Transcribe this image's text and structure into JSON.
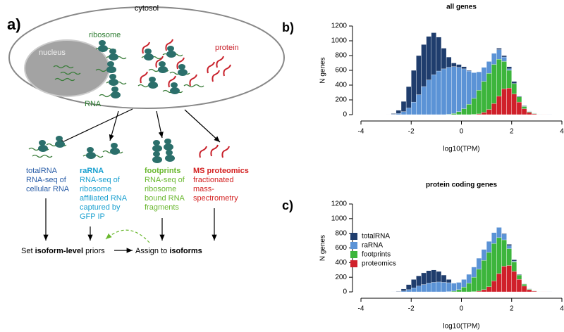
{
  "panels": [
    "a)",
    "b)",
    "c)"
  ],
  "diagram": {
    "cytosol": "cytosol",
    "ribosome": "ribosome",
    "nucleus": "nucleus",
    "protein": "protein",
    "rna": "RNA",
    "columns": [
      {
        "title": "totalRNA",
        "lines": [
          "RNA-seq of",
          "cellular RNA"
        ]
      },
      {
        "title": "raRNA",
        "lines": [
          "RNA-seq of",
          "ribosome",
          "affiliated RNA",
          "captured by",
          "GFP IP"
        ]
      },
      {
        "title": "footprints",
        "lines": [
          "RNA-seq of",
          "ribosome",
          "bound RNA",
          "fragments"
        ]
      },
      {
        "title": "MS proteomics",
        "lines": [
          "fractionated",
          "mass-",
          "spectrometry"
        ]
      }
    ],
    "priors": [
      "Set ",
      "isoform-level",
      " priors"
    ],
    "assign": [
      "Assign to ",
      "isoforms"
    ]
  },
  "chart_data": [
    {
      "type": "histogram",
      "title": "all genes",
      "xlabel": "log10(TPM)",
      "ylabel": "N genes",
      "bins": [
        -3.0,
        -2.8,
        -2.6,
        -2.4,
        -2.2,
        -2.0,
        -1.8,
        -1.6,
        -1.4,
        -1.2,
        -1.0,
        -0.8,
        -0.6,
        -0.4,
        -0.2,
        0.0,
        0.2,
        0.4,
        0.6,
        0.8,
        1.0,
        1.2,
        1.4,
        1.6,
        1.8,
        2.0,
        2.2,
        2.4,
        2.6,
        2.8,
        3.0,
        3.2,
        3.4,
        3.6
      ],
      "xlim": [
        -4,
        4
      ],
      "xticks": [
        -4,
        -2,
        0,
        2,
        4
      ],
      "ylim": [
        0,
        1200
      ],
      "yticks": [
        0,
        200,
        400,
        600,
        800,
        1000,
        1200
      ],
      "series": [
        {
          "color": "#1f3d6d",
          "values": [
            5,
            15,
            60,
            180,
            380,
            600,
            800,
            950,
            1060,
            1110,
            1050,
            900,
            780,
            700,
            680,
            650,
            600,
            560,
            560,
            620,
            700,
            820,
            900,
            800,
            650,
            450,
            250,
            120,
            50,
            20,
            8,
            3,
            1
          ]
        },
        {
          "color": "#5b93d6",
          "values": [
            2,
            5,
            15,
            40,
            90,
            170,
            270,
            380,
            470,
            540,
            590,
            620,
            640,
            650,
            640,
            620,
            590,
            570,
            580,
            640,
            720,
            830,
            880,
            780,
            620,
            420,
            230,
            110,
            45,
            18,
            6,
            2,
            1
          ]
        },
        {
          "color": "#3cb53c",
          "values": [
            0,
            0,
            0,
            0,
            0,
            0,
            0,
            0,
            0,
            0,
            0,
            0,
            5,
            15,
            40,
            80,
            140,
            220,
            330,
            450,
            560,
            680,
            750,
            720,
            600,
            420,
            240,
            110,
            40,
            15,
            5,
            2,
            0
          ]
        },
        {
          "color": "#d0202a",
          "values": [
            0,
            0,
            0,
            0,
            0,
            0,
            0,
            0,
            0,
            0,
            0,
            0,
            0,
            0,
            0,
            0,
            0,
            3,
            10,
            30,
            70,
            150,
            250,
            350,
            360,
            280,
            170,
            80,
            30,
            10,
            3,
            1,
            0
          ]
        }
      ]
    },
    {
      "type": "histogram",
      "title": "protein coding genes",
      "xlabel": "log10(TPM)",
      "ylabel": "N genes",
      "bins": [
        -3.0,
        -2.8,
        -2.6,
        -2.4,
        -2.2,
        -2.0,
        -1.8,
        -1.6,
        -1.4,
        -1.2,
        -1.0,
        -0.8,
        -0.6,
        -0.4,
        -0.2,
        0.0,
        0.2,
        0.4,
        0.6,
        0.8,
        1.0,
        1.2,
        1.4,
        1.6,
        1.8,
        2.0,
        2.2,
        2.4,
        2.6,
        2.8,
        3.0,
        3.2,
        3.4,
        3.6
      ],
      "xlim": [
        -4,
        4
      ],
      "xticks": [
        -4,
        -2,
        0,
        2,
        4
      ],
      "ylim": [
        0,
        1200
      ],
      "yticks": [
        0,
        200,
        400,
        600,
        800,
        1000,
        1200
      ],
      "legend": "upper left",
      "series": [
        {
          "name": "totalRNA",
          "color": "#1f3d6d",
          "values": [
            0,
            2,
            10,
            40,
            100,
            170,
            220,
            260,
            290,
            300,
            280,
            230,
            170,
            120,
            100,
            150,
            220,
            330,
            460,
            580,
            680,
            800,
            880,
            800,
            650,
            440,
            240,
            110,
            45,
            18,
            6,
            2,
            1
          ]
        },
        {
          "name": "raRNA",
          "color": "#5b93d6",
          "values": [
            0,
            1,
            4,
            12,
            30,
            55,
            80,
            100,
            120,
            130,
            135,
            130,
            125,
            120,
            130,
            170,
            240,
            340,
            460,
            580,
            690,
            810,
            880,
            790,
            630,
            420,
            230,
            105,
            42,
            16,
            5,
            2,
            1
          ]
        },
        {
          "name": "footprints",
          "color": "#3cb53c",
          "values": [
            0,
            0,
            0,
            0,
            0,
            0,
            0,
            0,
            0,
            0,
            0,
            0,
            3,
            10,
            30,
            65,
            120,
            200,
            310,
            430,
            540,
            660,
            740,
            710,
            590,
            410,
            230,
            105,
            38,
            14,
            5,
            2,
            0
          ]
        },
        {
          "name": "proteomics",
          "color": "#d0202a",
          "values": [
            0,
            0,
            0,
            0,
            0,
            0,
            0,
            0,
            0,
            0,
            0,
            0,
            0,
            0,
            0,
            0,
            0,
            3,
            10,
            30,
            70,
            150,
            250,
            350,
            360,
            280,
            170,
            80,
            30,
            10,
            3,
            1,
            0
          ]
        }
      ]
    }
  ]
}
